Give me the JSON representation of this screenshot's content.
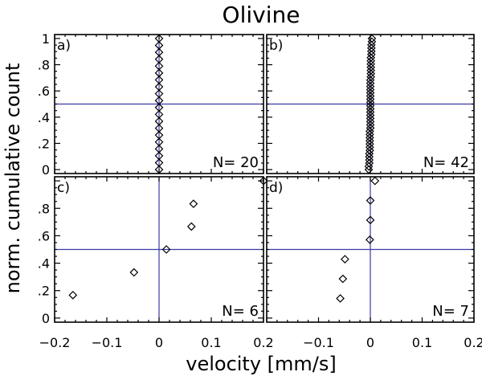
{
  "chart_data": {
    "title": "Olivine",
    "xlabel": "velocity [mm/s]",
    "ylabel": "norm. cumulative count",
    "xlim": [
      -0.2,
      0.2
    ],
    "ylim": [
      -0.03,
      1.03
    ],
    "x_tick_values": [
      -0.2,
      -0.1,
      0,
      0.1,
      0.2
    ],
    "x_tick_labels": [
      "−0.2",
      "−0.1",
      "0",
      "0.1",
      "0.2"
    ],
    "y_tick_values": [
      0,
      0.2,
      0.4,
      0.6,
      0.8,
      1
    ],
    "y_tick_labels": [
      "0",
      ".2",
      ".4",
      ".6",
      ".8",
      "1"
    ],
    "reference_lines": {
      "x": 0,
      "y": 0.5
    },
    "panels": [
      {
        "type": "scatter",
        "label": "a)",
        "n_label": "N=  20",
        "x": [
          0,
          0,
          0,
          0,
          0,
          0,
          0,
          0,
          0,
          0,
          0,
          0,
          0,
          0,
          0,
          0,
          0,
          0,
          0,
          0
        ],
        "y": [
          0,
          0.0526,
          0.1053,
          0.1579,
          0.2105,
          0.2632,
          0.3158,
          0.3684,
          0.4211,
          0.4737,
          0.5263,
          0.5789,
          0.6316,
          0.6842,
          0.7368,
          0.7895,
          0.8421,
          0.8947,
          0.9474,
          1
        ]
      },
      {
        "type": "scatter",
        "label": "b)",
        "n_label": "N=  42",
        "x": [
          -0.003,
          -0.003,
          -0.002,
          -0.002,
          -0.002,
          -0.002,
          -0.001,
          -0.001,
          -0.001,
          -0.001,
          -0.001,
          -0.001,
          -0.001,
          0,
          0,
          0,
          0,
          0,
          0,
          0,
          0,
          0,
          0,
          0,
          0,
          0,
          0,
          0,
          0,
          0.001,
          0.001,
          0.001,
          0.001,
          0.001,
          0.001,
          0.001,
          0.002,
          0.002,
          0.002,
          0.002,
          0.003,
          0.003
        ],
        "y": [
          0,
          0.0244,
          0.0488,
          0.0732,
          0.0976,
          0.122,
          0.1463,
          0.1707,
          0.1951,
          0.2195,
          0.2439,
          0.2683,
          0.2927,
          0.3171,
          0.3415,
          0.3659,
          0.3902,
          0.4146,
          0.439,
          0.4634,
          0.4878,
          0.5122,
          0.5366,
          0.561,
          0.5854,
          0.6098,
          0.6341,
          0.6585,
          0.6829,
          0.7073,
          0.7317,
          0.7561,
          0.7805,
          0.8049,
          0.8293,
          0.8537,
          0.878,
          0.9024,
          0.9268,
          0.9512,
          0.9756,
          1
        ]
      },
      {
        "type": "scatter",
        "label": "c)",
        "n_label": "N=   6",
        "x": [
          -0.165,
          -0.048,
          0.014,
          0.062,
          0.066,
          0.2
        ],
        "y": [
          0.167,
          0.333,
          0.5,
          0.667,
          0.833,
          1.0
        ]
      },
      {
        "type": "scatter",
        "label": "d)",
        "n_label": "N=   7",
        "x": [
          -0.058,
          -0.053,
          -0.049,
          -0.001,
          0,
          0,
          0.009
        ],
        "y": [
          0.143,
          0.286,
          0.429,
          0.571,
          0.714,
          0.857,
          1.0
        ]
      }
    ]
  }
}
